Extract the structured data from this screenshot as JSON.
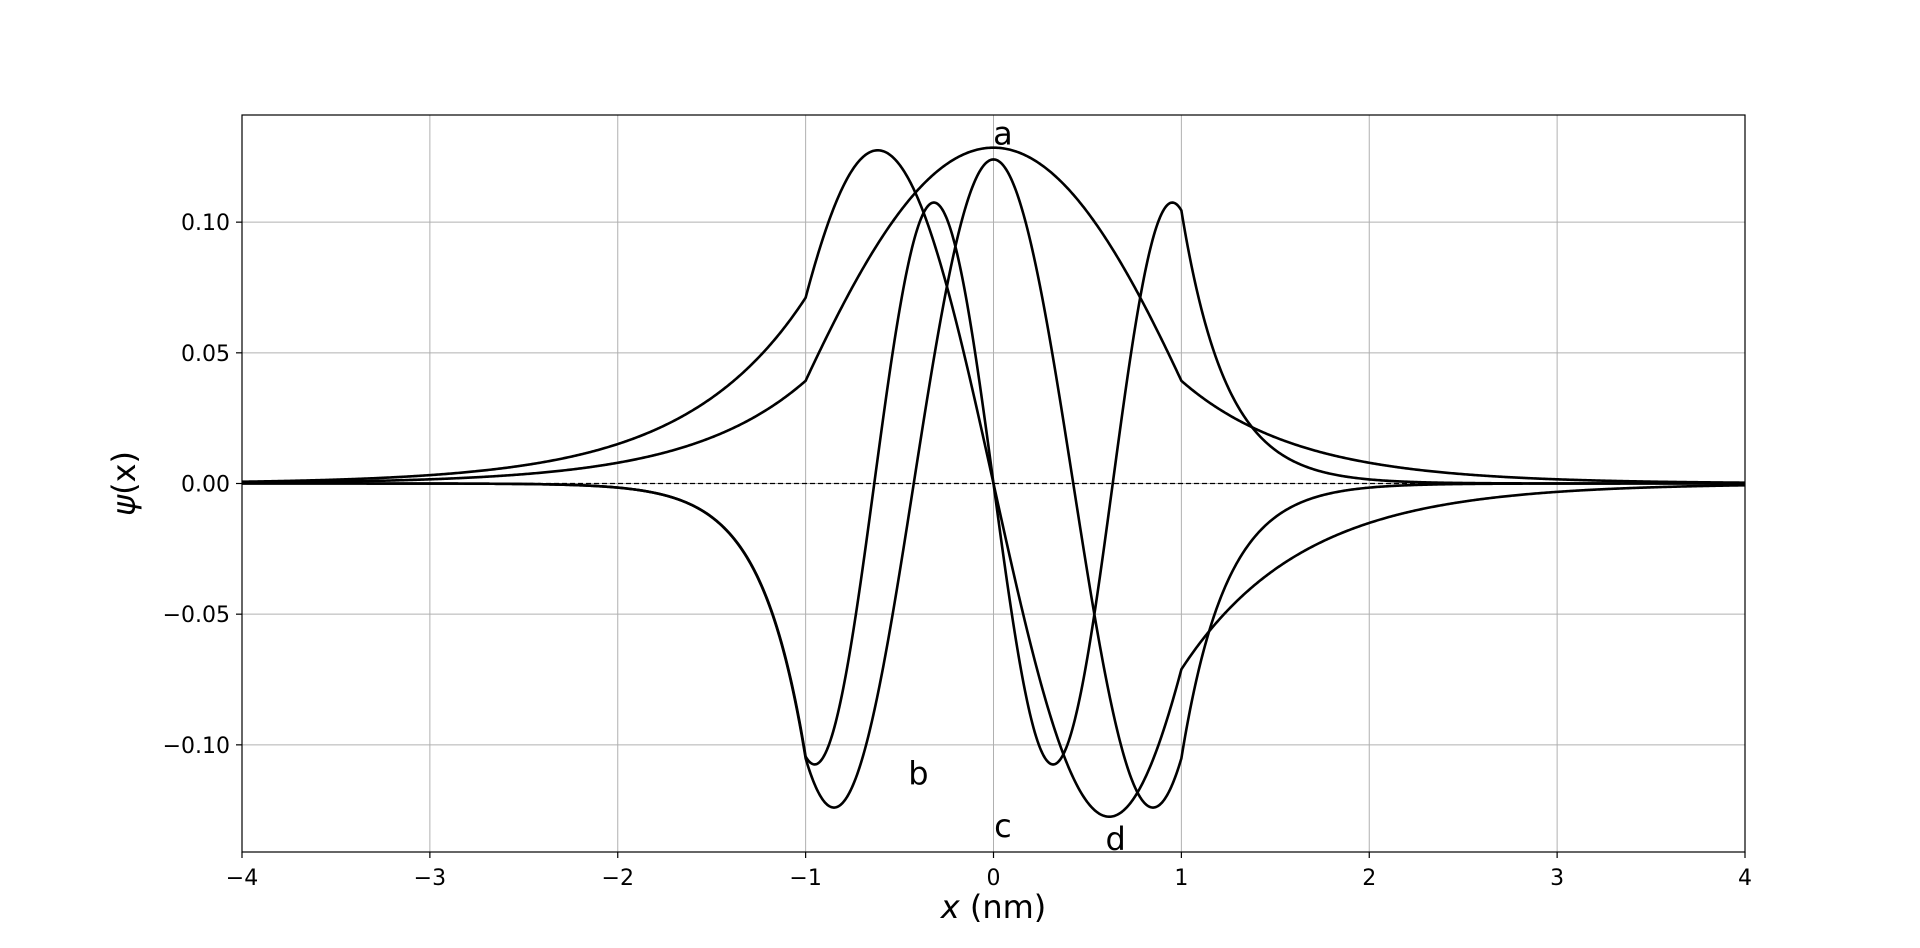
{
  "chart_data": {
    "type": "line",
    "title": "",
    "xlabel": {
      "var": "x",
      "rest": " (nm)"
    },
    "ylabel": {
      "var": "ψ",
      "rest": "(x)"
    },
    "xlim": [
      -4,
      4
    ],
    "ylim": [
      -0.141,
      0.141
    ],
    "xticks": [
      -4,
      -3,
      -2,
      -1,
      0,
      1,
      2,
      3,
      4
    ],
    "xtick_labels": [
      "−4",
      "−3",
      "−2",
      "−1",
      "0",
      "1",
      "2",
      "3",
      "4"
    ],
    "yticks": [
      -0.1,
      -0.05,
      0.0,
      0.05,
      0.1
    ],
    "ytick_labels": [
      "−0.10",
      "−0.05",
      "0.00",
      "0.05",
      "0.10"
    ],
    "grid": true,
    "reference_line": {
      "y": 0,
      "style": "dashed"
    },
    "well_half_width": 1,
    "series": [
      {
        "label": "a",
        "label_pos": [
          0.05,
          0.134
        ],
        "kind": "even",
        "k": 1.26,
        "kappa": 1.6,
        "inside_peak": 0.1285
      },
      {
        "label": "b",
        "label_pos": [
          -0.4,
          -0.111
        ],
        "kind": "odd",
        "k": 2.55,
        "kappa": 1.55,
        "inside_peak": 0.1275
      },
      {
        "label": "c",
        "label_pos": [
          0.05,
          -0.131
        ],
        "kind": "even",
        "k": 3.7,
        "kappa": 4.2,
        "inside_peak": 0.124
      },
      {
        "label": "d",
        "label_pos": [
          0.65,
          -0.136
        ],
        "kind": "odd",
        "k": 4.95,
        "kappa": 4.2,
        "inside_peak": 0.1075
      }
    ]
  }
}
